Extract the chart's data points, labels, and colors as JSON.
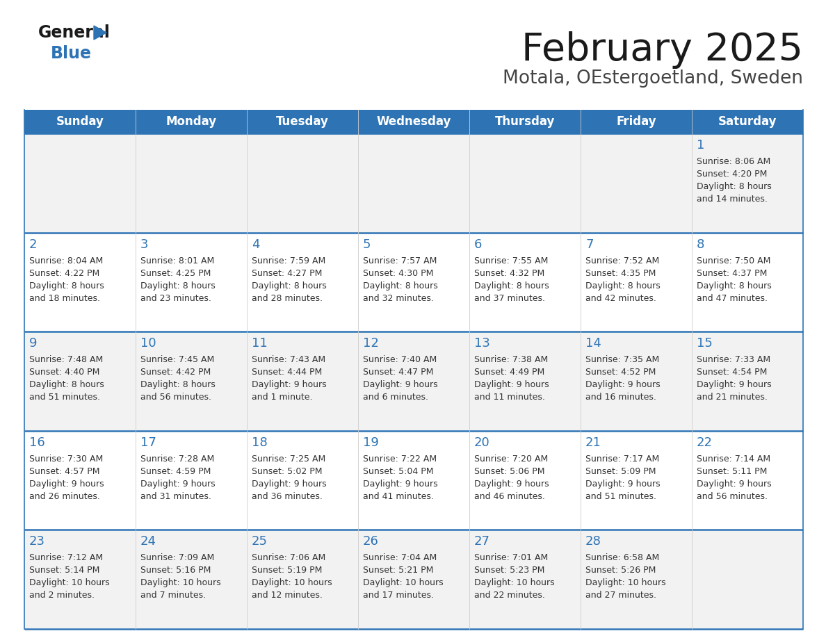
{
  "title": "February 2025",
  "subtitle": "Motala, OEstergoetland, Sweden",
  "days_of_week": [
    "Sunday",
    "Monday",
    "Tuesday",
    "Wednesday",
    "Thursday",
    "Friday",
    "Saturday"
  ],
  "header_bg": "#2E74B5",
  "header_text": "#FFFFFF",
  "row_bg_odd": "#F2F2F2",
  "row_bg_even": "#FFFFFF",
  "cell_border": "#2E74B5",
  "day_number_color": "#2E74B5",
  "cell_text_color": "#333333",
  "title_color": "#1a1a1a",
  "subtitle_color": "#444444",
  "calendar_data": [
    [
      {
        "day": "",
        "sunrise": "",
        "sunset": "",
        "daylight": ""
      },
      {
        "day": "",
        "sunrise": "",
        "sunset": "",
        "daylight": ""
      },
      {
        "day": "",
        "sunrise": "",
        "sunset": "",
        "daylight": ""
      },
      {
        "day": "",
        "sunrise": "",
        "sunset": "",
        "daylight": ""
      },
      {
        "day": "",
        "sunrise": "",
        "sunset": "",
        "daylight": ""
      },
      {
        "day": "",
        "sunrise": "",
        "sunset": "",
        "daylight": ""
      },
      {
        "day": "1",
        "sunrise": "8:06 AM",
        "sunset": "4:20 PM",
        "daylight": "8 hours\nand 14 minutes."
      }
    ],
    [
      {
        "day": "2",
        "sunrise": "8:04 AM",
        "sunset": "4:22 PM",
        "daylight": "8 hours\nand 18 minutes."
      },
      {
        "day": "3",
        "sunrise": "8:01 AM",
        "sunset": "4:25 PM",
        "daylight": "8 hours\nand 23 minutes."
      },
      {
        "day": "4",
        "sunrise": "7:59 AM",
        "sunset": "4:27 PM",
        "daylight": "8 hours\nand 28 minutes."
      },
      {
        "day": "5",
        "sunrise": "7:57 AM",
        "sunset": "4:30 PM",
        "daylight": "8 hours\nand 32 minutes."
      },
      {
        "day": "6",
        "sunrise": "7:55 AM",
        "sunset": "4:32 PM",
        "daylight": "8 hours\nand 37 minutes."
      },
      {
        "day": "7",
        "sunrise": "7:52 AM",
        "sunset": "4:35 PM",
        "daylight": "8 hours\nand 42 minutes."
      },
      {
        "day": "8",
        "sunrise": "7:50 AM",
        "sunset": "4:37 PM",
        "daylight": "8 hours\nand 47 minutes."
      }
    ],
    [
      {
        "day": "9",
        "sunrise": "7:48 AM",
        "sunset": "4:40 PM",
        "daylight": "8 hours\nand 51 minutes."
      },
      {
        "day": "10",
        "sunrise": "7:45 AM",
        "sunset": "4:42 PM",
        "daylight": "8 hours\nand 56 minutes."
      },
      {
        "day": "11",
        "sunrise": "7:43 AM",
        "sunset": "4:44 PM",
        "daylight": "9 hours\nand 1 minute."
      },
      {
        "day": "12",
        "sunrise": "7:40 AM",
        "sunset": "4:47 PM",
        "daylight": "9 hours\nand 6 minutes."
      },
      {
        "day": "13",
        "sunrise": "7:38 AM",
        "sunset": "4:49 PM",
        "daylight": "9 hours\nand 11 minutes."
      },
      {
        "day": "14",
        "sunrise": "7:35 AM",
        "sunset": "4:52 PM",
        "daylight": "9 hours\nand 16 minutes."
      },
      {
        "day": "15",
        "sunrise": "7:33 AM",
        "sunset": "4:54 PM",
        "daylight": "9 hours\nand 21 minutes."
      }
    ],
    [
      {
        "day": "16",
        "sunrise": "7:30 AM",
        "sunset": "4:57 PM",
        "daylight": "9 hours\nand 26 minutes."
      },
      {
        "day": "17",
        "sunrise": "7:28 AM",
        "sunset": "4:59 PM",
        "daylight": "9 hours\nand 31 minutes."
      },
      {
        "day": "18",
        "sunrise": "7:25 AM",
        "sunset": "5:02 PM",
        "daylight": "9 hours\nand 36 minutes."
      },
      {
        "day": "19",
        "sunrise": "7:22 AM",
        "sunset": "5:04 PM",
        "daylight": "9 hours\nand 41 minutes."
      },
      {
        "day": "20",
        "sunrise": "7:20 AM",
        "sunset": "5:06 PM",
        "daylight": "9 hours\nand 46 minutes."
      },
      {
        "day": "21",
        "sunrise": "7:17 AM",
        "sunset": "5:09 PM",
        "daylight": "9 hours\nand 51 minutes."
      },
      {
        "day": "22",
        "sunrise": "7:14 AM",
        "sunset": "5:11 PM",
        "daylight": "9 hours\nand 56 minutes."
      }
    ],
    [
      {
        "day": "23",
        "sunrise": "7:12 AM",
        "sunset": "5:14 PM",
        "daylight": "10 hours\nand 2 minutes."
      },
      {
        "day": "24",
        "sunrise": "7:09 AM",
        "sunset": "5:16 PM",
        "daylight": "10 hours\nand 7 minutes."
      },
      {
        "day": "25",
        "sunrise": "7:06 AM",
        "sunset": "5:19 PM",
        "daylight": "10 hours\nand 12 minutes."
      },
      {
        "day": "26",
        "sunrise": "7:04 AM",
        "sunset": "5:21 PM",
        "daylight": "10 hours\nand 17 minutes."
      },
      {
        "day": "27",
        "sunrise": "7:01 AM",
        "sunset": "5:23 PM",
        "daylight": "10 hours\nand 22 minutes."
      },
      {
        "day": "28",
        "sunrise": "6:58 AM",
        "sunset": "5:26 PM",
        "daylight": "10 hours\nand 27 minutes."
      },
      {
        "day": "",
        "sunrise": "",
        "sunset": "",
        "daylight": ""
      }
    ]
  ]
}
